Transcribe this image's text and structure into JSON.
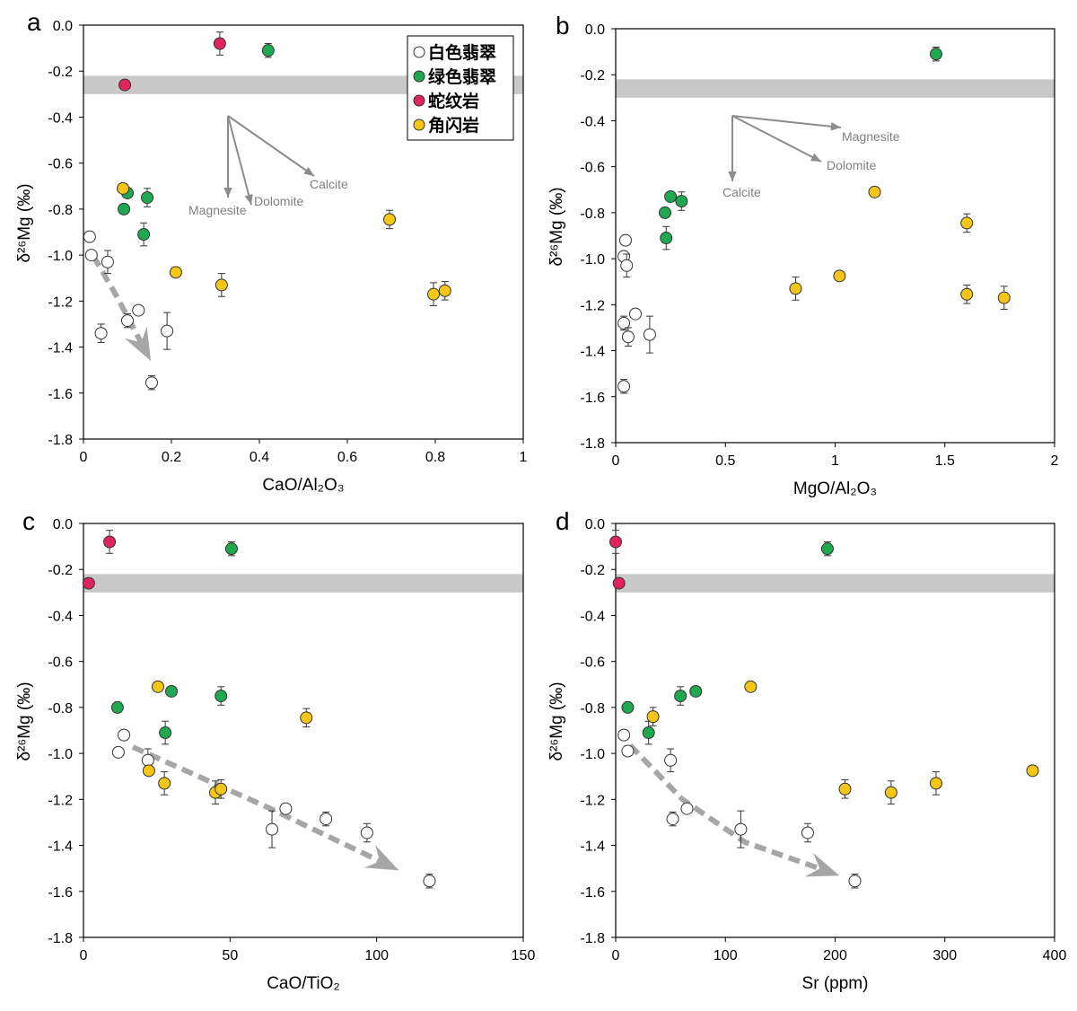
{
  "legend": {
    "items": [
      {
        "label": "白色翡翠",
        "color": "#ffffff"
      },
      {
        "label": "绿色翡翠",
        "color": "#1fa84f"
      },
      {
        "label": "蛇纹岩",
        "color": "#e0245e"
      },
      {
        "label": "角闪岩",
        "color": "#f5c518"
      }
    ]
  },
  "colors": {
    "band": "#c8c8c8",
    "arrow": "#8c8c8c",
    "trend": "#a6a6a6"
  },
  "chart_data": [
    {
      "panel": "a",
      "type": "scatter",
      "xlabel": "CaO/Al₂O₃",
      "ylabel": "δ²⁶Mg (‰)",
      "xlim": [
        0,
        1
      ],
      "ylim": [
        -1.8,
        0.0
      ],
      "xticks": [
        "0",
        "0.2",
        "0.4",
        "0.6",
        "0.8",
        "1"
      ],
      "yticks": [
        "0.0",
        "-0.2",
        "-0.4",
        "-0.6",
        "-0.8",
        "-1.0",
        "-1.2",
        "-1.4",
        "-1.6",
        "-1.8"
      ],
      "band": [
        -0.3,
        -0.22
      ],
      "annotations": [
        "Magnesite",
        "Dolomite",
        "Calcite"
      ],
      "series": [
        {
          "name": "白色翡翠",
          "points": [
            [
              0.014,
              -0.92,
              0.02
            ],
            [
              0.018,
              -1.0,
              0.02
            ],
            [
              0.055,
              -1.03,
              0.05
            ],
            [
              0.04,
              -1.34,
              0.04
            ],
            [
              0.1,
              -1.285,
              0.03
            ],
            [
              0.125,
              -1.24,
              0.02
            ],
            [
              0.19,
              -1.33,
              0.08
            ],
            [
              0.155,
              -1.555,
              0.03
            ]
          ]
        },
        {
          "name": "绿色翡翠",
          "points": [
            [
              0.42,
              -0.11,
              0.03
            ],
            [
              0.092,
              -0.8,
              0.02
            ],
            [
              0.1,
              -0.73,
              0.02
            ],
            [
              0.145,
              -0.75,
              0.04
            ],
            [
              0.137,
              -0.91,
              0.05
            ]
          ]
        },
        {
          "name": "蛇纹岩",
          "points": [
            [
              0.31,
              -0.08,
              0.05
            ],
            [
              0.094,
              -0.26,
              0.02
            ]
          ]
        },
        {
          "name": "角闪岩",
          "points": [
            [
              0.09,
              -0.71,
              0.02
            ],
            [
              0.21,
              -1.075,
              0.02
            ],
            [
              0.314,
              -1.13,
              0.05
            ],
            [
              0.696,
              -0.845,
              0.04
            ],
            [
              0.796,
              -1.17,
              0.05
            ],
            [
              0.822,
              -1.155,
              0.04
            ]
          ]
        }
      ]
    },
    {
      "panel": "b",
      "type": "scatter",
      "xlabel": "MgO/Al₂O₃",
      "ylabel": "δ²⁶Mg (‰)",
      "xlim": [
        0,
        2
      ],
      "ylim": [
        -1.8,
        0.0
      ],
      "xticks": [
        "0",
        "0.5",
        "1",
        "1.5",
        "2"
      ],
      "yticks": [
        "0.0",
        "-0.2",
        "-0.4",
        "-0.6",
        "-0.8",
        "-1.0",
        "-1.2",
        "-1.4",
        "-1.6",
        "-1.8"
      ],
      "band": [
        -0.3,
        -0.22
      ],
      "annotations": [
        "Magnesite",
        "Dolomite",
        "Calcite"
      ],
      "series": [
        {
          "name": "白色翡翠",
          "points": [
            [
              0.045,
              -0.92,
              0.02
            ],
            [
              0.037,
              -0.99,
              0.02
            ],
            [
              0.05,
              -1.03,
              0.05
            ],
            [
              0.037,
              -1.28,
              0.03
            ],
            [
              0.057,
              -1.34,
              0.04
            ],
            [
              0.09,
              -1.24,
              0.02
            ],
            [
              0.155,
              -1.33,
              0.08
            ],
            [
              0.037,
              -1.555,
              0.03
            ]
          ]
        },
        {
          "name": "绿色翡翠",
          "points": [
            [
              1.46,
              -0.11,
              0.03
            ],
            [
              0.225,
              -0.8,
              0.02
            ],
            [
              0.25,
              -0.73,
              0.02
            ],
            [
              0.3,
              -0.75,
              0.04
            ],
            [
              0.23,
              -0.91,
              0.05
            ]
          ]
        },
        {
          "name": "角闪岩",
          "points": [
            [
              1.18,
              -0.71,
              0.02
            ],
            [
              1.6,
              -0.845,
              0.04
            ],
            [
              0.82,
              -1.13,
              0.05
            ],
            [
              1.02,
              -1.075,
              0.02
            ],
            [
              1.6,
              -1.155,
              0.04
            ],
            [
              1.77,
              -1.17,
              0.05
            ]
          ]
        }
      ]
    },
    {
      "panel": "c",
      "type": "scatter",
      "xlabel": "CaO/TiO₂",
      "ylabel": "δ²⁶Mg (‰)",
      "xlim": [
        0,
        150
      ],
      "ylim": [
        -1.8,
        0.0
      ],
      "xticks": [
        "0",
        "50",
        "100",
        "150"
      ],
      "yticks": [
        "0.0",
        "-0.2",
        "-0.4",
        "-0.6",
        "-0.8",
        "-1.0",
        "-1.2",
        "-1.4",
        "-1.6",
        "-1.8"
      ],
      "band": [
        -0.3,
        -0.22
      ],
      "series": [
        {
          "name": "白色翡翠",
          "points": [
            [
              13.8,
              -0.92,
              0.02
            ],
            [
              11.9,
              -0.995,
              0.02
            ],
            [
              22,
              -1.03,
              0.05
            ],
            [
              69,
              -1.24,
              0.02
            ],
            [
              82.7,
              -1.285,
              0.03
            ],
            [
              64.3,
              -1.33,
              0.08
            ],
            [
              96.7,
              -1.345,
              0.04
            ],
            [
              118,
              -1.555,
              0.03
            ]
          ]
        },
        {
          "name": "绿色翡翠",
          "points": [
            [
              50.5,
              -0.11,
              0.03
            ],
            [
              11.6,
              -0.8,
              0.02
            ],
            [
              30,
              -0.73,
              0.02
            ],
            [
              46.9,
              -0.75,
              0.04
            ],
            [
              27.9,
              -0.91,
              0.05
            ]
          ]
        },
        {
          "name": "蛇纹岩",
          "points": [
            [
              8.9,
              -0.08,
              0.05
            ],
            [
              1.8,
              -0.26,
              0.02
            ]
          ]
        },
        {
          "name": "角闪岩",
          "points": [
            [
              25.4,
              -0.71,
              0.02
            ],
            [
              22.3,
              -1.075,
              0.02
            ],
            [
              27.6,
              -1.13,
              0.05
            ],
            [
              76,
              -0.845,
              0.04
            ],
            [
              45,
              -1.17,
              0.05
            ],
            [
              46.9,
              -1.155,
              0.04
            ]
          ]
        }
      ]
    },
    {
      "panel": "d",
      "type": "scatter",
      "xlabel": "Sr (ppm)",
      "ylabel": "δ²⁶Mg (‰)",
      "xlim": [
        0,
        400
      ],
      "ylim": [
        -1.8,
        0.0
      ],
      "xticks": [
        "0",
        "100",
        "200",
        "300",
        "400"
      ],
      "yticks": [
        "0.0",
        "-0.2",
        "-0.4",
        "-0.6",
        "-0.8",
        "-1.0",
        "-1.2",
        "-1.4",
        "-1.6",
        "-1.8"
      ],
      "band": [
        -0.3,
        -0.22
      ],
      "series": [
        {
          "name": "白色翡翠",
          "points": [
            [
              7.5,
              -0.92,
              0.02
            ],
            [
              11,
              -0.99,
              0.02
            ],
            [
              50,
              -1.03,
              0.05
            ],
            [
              52,
              -1.285,
              0.03
            ],
            [
              65,
              -1.24,
              0.02
            ],
            [
              114,
              -1.33,
              0.08
            ],
            [
              175,
              -1.345,
              0.04
            ],
            [
              218,
              -1.555,
              0.03
            ]
          ]
        },
        {
          "name": "绿色翡翠",
          "points": [
            [
              193,
              -0.11,
              0.03
            ],
            [
              11,
              -0.8,
              0.02
            ],
            [
              73,
              -0.73,
              0.02
            ],
            [
              59,
              -0.75,
              0.04
            ],
            [
              30,
              -0.91,
              0.05
            ]
          ]
        },
        {
          "name": "蛇纹岩",
          "points": [
            [
              0,
              -0.08,
              0.05
            ],
            [
              3,
              -0.26,
              0.02
            ]
          ]
        },
        {
          "name": "角闪岩",
          "points": [
            [
              123,
              -0.71,
              0.02
            ],
            [
              34,
              -0.84,
              0.04
            ],
            [
              209,
              -1.155,
              0.04
            ],
            [
              251,
              -1.17,
              0.05
            ],
            [
              292,
              -1.13,
              0.05
            ],
            [
              380,
              -1.075,
              0.02
            ]
          ]
        }
      ]
    }
  ]
}
